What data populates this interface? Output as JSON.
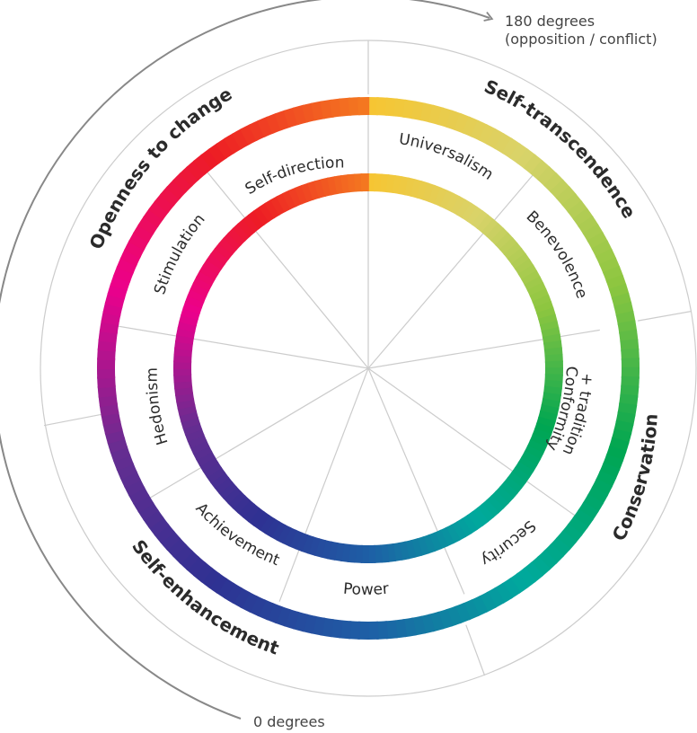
{
  "values": [
    "Self-direction",
    "Universalism",
    "Benevolence",
    "Conformity",
    "+ tradition",
    "Security",
    "Power",
    "Achievement",
    "Hedonism",
    "Stimulation"
  ],
  "higher_order": [
    "Self-transcendence",
    "Conservation",
    "Self-enhancement",
    "Openness to change"
  ],
  "annotations": {
    "top_line1": "180 degrees",
    "top_line2": "(opposition / conflict)",
    "bottom": "0 degrees"
  },
  "colors": {
    "spectrum": [
      "#f7c531",
      "#d9d36a",
      "#8cc63f",
      "#00a651",
      "#00a99d",
      "#1e5fa6",
      "#2e3192",
      "#662d91",
      "#ec008c",
      "#ed1c24",
      "#f47a20"
    ],
    "divider_lines": "#cccccc",
    "arc_arrow": "#888888",
    "text": "#2b2b2b"
  }
}
